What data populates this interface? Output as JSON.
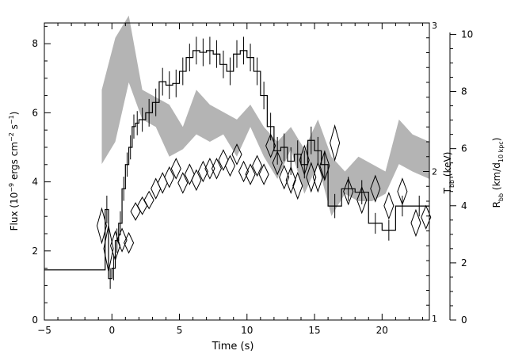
{
  "chart_data": {
    "type": "line",
    "xlabel": "Time (s)",
    "ylabel_left": {
      "base": "Flux (10",
      "sup1": "−9",
      "mid1": " ergs cm",
      "sup2": "−2",
      "mid2": " s",
      "sup3": "−1",
      "end": ")"
    },
    "ylabel_right_inner": {
      "base": "T",
      "sub": "bb",
      "end": " (keV)"
    },
    "ylabel_right_outer": {
      "base": "R",
      "sub": "bb",
      "mid": " (km/d",
      "sub2": "10 kpc",
      "end": ")"
    },
    "xlim": [
      -5,
      23.5
    ],
    "ylim_flux": [
      0,
      8.6
    ],
    "ylim_temperature": [
      1,
      3
    ],
    "ylim_radius": [
      0,
      10.4
    ],
    "x_ticks": [
      "−5",
      "0",
      "5",
      "10",
      "15",
      "20"
    ],
    "x_tick_values": [
      -5,
      0,
      5,
      10,
      15,
      20
    ],
    "flux_ticks": [
      "0",
      "2",
      "4",
      "6",
      "8"
    ],
    "flux_tick_values": [
      0,
      2,
      4,
      6,
      8
    ],
    "temperature_ticks": [
      "1",
      "2",
      "3"
    ],
    "temperature_tick_values": [
      1,
      2,
      3
    ],
    "radius_ticks": [
      "0",
      "2",
      "4",
      "6",
      "8",
      "10"
    ],
    "radius_tick_values": [
      0,
      2,
      4,
      6,
      8,
      10
    ],
    "grid": false,
    "series": [
      {
        "kind": "flux-histogram",
        "x_edges": [
          -5,
          -0.5,
          -0.25,
          0,
          0.25,
          0.5,
          0.75,
          1,
          1.25,
          1.5,
          1.75,
          2,
          2.5,
          3,
          3.5,
          4,
          4.5,
          5,
          5.5,
          6,
          6.5,
          7,
          7.5,
          8,
          8.5,
          9,
          9.5,
          10,
          10.5,
          11,
          11.5,
          12,
          12.5,
          13,
          13.5,
          14,
          14.5,
          15,
          15.5,
          16,
          17,
          18,
          19,
          20,
          21,
          22,
          23.5
        ],
        "values": [
          1.45,
          3.2,
          1.2,
          1.5,
          2.3,
          2.8,
          3.8,
          4.5,
          5.0,
          5.6,
          5.7,
          5.8,
          6.0,
          6.3,
          6.9,
          6.8,
          6.85,
          7.2,
          7.6,
          7.8,
          7.75,
          7.8,
          7.7,
          7.4,
          7.2,
          7.7,
          7.8,
          7.6,
          7.2,
          6.5,
          5.6,
          4.9,
          5.0,
          4.6,
          4.8,
          4.5,
          5.2,
          4.9,
          4.5,
          3.3,
          3.8,
          3.7,
          2.8,
          2.6,
          3.3,
          3.3
        ],
        "errors": [
          0,
          0.4,
          0.3,
          0.35,
          0.35,
          0.35,
          0.35,
          0.35,
          0.35,
          0.35,
          0.35,
          0.35,
          0.4,
          0.4,
          0.4,
          0.4,
          0.4,
          0.4,
          0.4,
          0.4,
          0.4,
          0.4,
          0.4,
          0.4,
          0.4,
          0.4,
          0.4,
          0.4,
          0.4,
          0.4,
          0.4,
          0.4,
          0.4,
          0.4,
          0.4,
          0.4,
          0.4,
          0.4,
          0.4,
          0.35,
          0.35,
          0.35,
          0.3,
          0.3,
          0.3,
          0.3
        ]
      },
      {
        "kind": "temperature-band",
        "axis": "temperature",
        "x": [
          -0.75,
          0.25,
          1.25,
          2.25,
          3.25,
          4.25,
          5.25,
          6.25,
          7.25,
          8.25,
          9.25,
          10.25,
          11.25,
          12.25,
          13.25,
          14.25,
          15.25,
          16.25,
          17.25,
          18.25,
          19.25,
          20.25,
          21.25,
          22.25,
          23.5
        ],
        "upper": [
          2.55,
          2.9,
          3.05,
          2.55,
          2.5,
          2.45,
          2.3,
          2.55,
          2.45,
          2.4,
          2.35,
          2.45,
          2.3,
          2.2,
          2.3,
          2.15,
          2.35,
          2.1,
          2.0,
          2.1,
          2.05,
          2.0,
          2.35,
          2.25,
          2.2
        ],
        "lower": [
          2.05,
          2.2,
          2.6,
          2.35,
          2.3,
          2.1,
          2.15,
          2.25,
          2.2,
          2.25,
          2.1,
          2.3,
          2.1,
          1.95,
          2.15,
          1.85,
          2.05,
          1.7,
          1.85,
          1.8,
          1.8,
          1.85,
          2.05,
          2.0,
          1.95
        ]
      },
      {
        "kind": "radius-diamonds",
        "axis": "radius",
        "x": [
          -0.75,
          -0.25,
          0.25,
          0.75,
          1.25,
          1.75,
          2.25,
          2.75,
          3.25,
          3.75,
          4.25,
          4.75,
          5.25,
          5.75,
          6.25,
          6.75,
          7.25,
          7.75,
          8.25,
          8.75,
          9.25,
          9.75,
          10.25,
          10.75,
          11.25,
          11.75,
          12.25,
          12.75,
          13.25,
          13.75,
          14.25,
          14.75,
          15.25,
          15.75,
          16.5,
          17.5,
          18.5,
          19.5,
          20.5,
          21.5,
          22.5,
          23.25
        ],
        "values": [
          3.3,
          2.5,
          2.6,
          2.8,
          2.7,
          3.8,
          4.0,
          4.2,
          4.6,
          4.8,
          5.0,
          5.3,
          4.8,
          5.1,
          4.9,
          5.2,
          5.3,
          5.3,
          5.6,
          5.4,
          5.8,
          5.2,
          5.1,
          5.4,
          5.1,
          6.1,
          5.5,
          5.0,
          4.9,
          4.7,
          5.6,
          5.0,
          5.0,
          5.4,
          6.2,
          4.5,
          4.2,
          4.6,
          4.0,
          4.5,
          3.4,
          3.6
        ],
        "errors": [
          0.6,
          0.8,
          0.5,
          0.4,
          0.35,
          0.3,
          0.3,
          0.3,
          0.35,
          0.35,
          0.35,
          0.35,
          0.35,
          0.35,
          0.35,
          0.35,
          0.35,
          0.35,
          0.35,
          0.35,
          0.35,
          0.35,
          0.35,
          0.35,
          0.35,
          0.4,
          0.4,
          0.4,
          0.45,
          0.45,
          0.5,
          0.5,
          0.5,
          0.5,
          0.6,
          0.45,
          0.45,
          0.45,
          0.45,
          0.45,
          0.45,
          0.4
        ]
      }
    ],
    "colors": {
      "axis": "#000000",
      "histogram": "#000000",
      "band_fill": "#b4b4b4",
      "diamond_stroke": "#000000"
    }
  }
}
